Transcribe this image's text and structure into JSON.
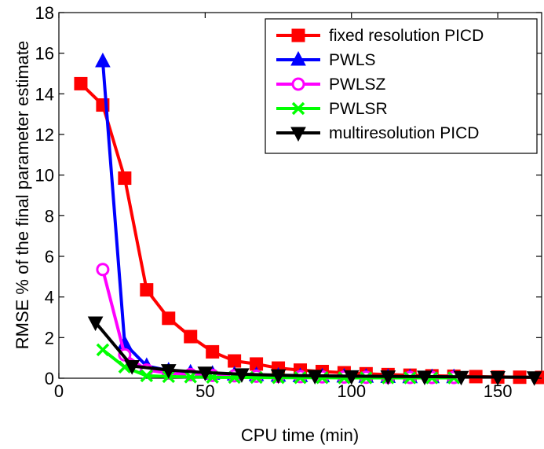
{
  "chart_data": {
    "type": "line",
    "xlabel": "CPU time (min)",
    "ylabel": "RMSE % of the final parameter estimate",
    "xlim": [
      0,
      165
    ],
    "ylim": [
      0,
      18
    ],
    "xticks": [
      0,
      50,
      100,
      150
    ],
    "yticks": [
      0,
      2,
      4,
      6,
      8,
      10,
      12,
      14,
      16,
      18
    ],
    "grid": false,
    "legend_position": "top-right",
    "series": [
      {
        "name": "fixed resolution PICD",
        "color": "#ff0000",
        "marker": "square",
        "x": [
          7.5,
          15,
          22.5,
          30,
          37.5,
          45,
          52.5,
          60,
          67.5,
          75,
          82.5,
          90,
          97.5,
          105,
          112.5,
          120,
          127.5,
          135,
          142.5,
          150,
          157.5,
          165
        ],
        "y": [
          14.5,
          13.45,
          9.85,
          4.35,
          2.95,
          2.05,
          1.3,
          0.85,
          0.7,
          0.5,
          0.4,
          0.33,
          0.27,
          0.22,
          0.18,
          0.15,
          0.12,
          0.1,
          0.08,
          0.06,
          0.05,
          0.04
        ]
      },
      {
        "name": "PWLS",
        "color": "#0000ff",
        "marker": "triangle-up",
        "x": [
          15,
          22.5,
          30,
          37.5,
          45,
          52.5,
          60,
          67.5,
          75,
          82.5,
          90,
          97.5,
          105,
          112.5,
          120,
          127.5,
          135
        ],
        "y": [
          15.6,
          1.7,
          0.6,
          0.38,
          0.28,
          0.22,
          0.18,
          0.15,
          0.12,
          0.1,
          0.09,
          0.08,
          0.07,
          0.06,
          0.05,
          0.05,
          0.05
        ]
      },
      {
        "name": "PWLSZ",
        "color": "#ff00ff",
        "marker": "circle",
        "x": [
          15,
          22.5,
          30,
          37.5,
          45,
          52.5,
          60,
          67.5,
          75,
          82.5,
          90,
          97.5,
          105,
          112.5,
          120,
          127.5,
          135
        ],
        "y": [
          5.35,
          1.15,
          0.4,
          0.25,
          0.18,
          0.14,
          0.12,
          0.1,
          0.09,
          0.08,
          0.07,
          0.06,
          0.05,
          0.05,
          0.04,
          0.04,
          0.04
        ]
      },
      {
        "name": "PWLSR",
        "color": "#00ff00",
        "marker": "x",
        "x": [
          15,
          22.5,
          30,
          37.5,
          45,
          52.5,
          60,
          67.5,
          75,
          82.5,
          90,
          97.5,
          105,
          112.5,
          120,
          127.5,
          135
        ],
        "y": [
          1.4,
          0.55,
          0.12,
          0.08,
          0.06,
          0.05,
          0.04,
          0.04,
          0.03,
          0.03,
          0.03,
          0.02,
          0.02,
          0.02,
          0.02,
          0.02,
          0.02
        ]
      },
      {
        "name": "multiresolution PICD",
        "color": "#000000",
        "marker": "triangle-down",
        "x": [
          12.5,
          25,
          37.5,
          50,
          62.5,
          75,
          87.5,
          100,
          112.5,
          125,
          137.5,
          150,
          162.5
        ],
        "y": [
          2.75,
          0.6,
          0.4,
          0.28,
          0.2,
          0.15,
          0.12,
          0.1,
          0.09,
          0.08,
          0.07,
          0.06,
          0.05
        ]
      }
    ]
  }
}
